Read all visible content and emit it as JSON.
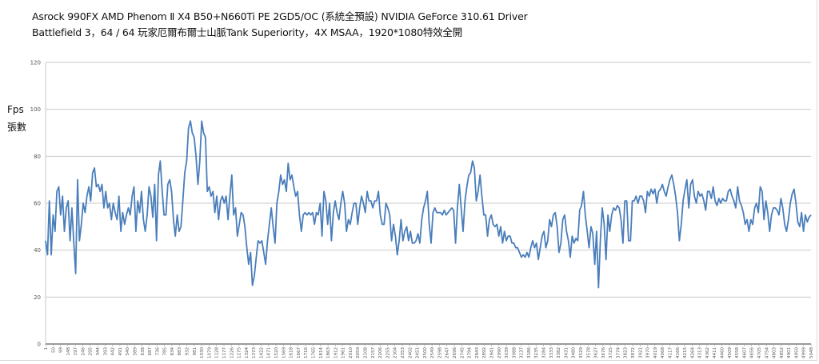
{
  "chart_data": {
    "type": "line",
    "title": "Asrock 990FX AMD Phenom Ⅱ X4 B50+N660Ti PE 2GD5/OC (系統全預設) NVIDIA GeForce 310.61 Driver",
    "subtitle": "Battlefield 3，64 / 64 玩家厄爾布爾士山脈Tank Superiority，4X MSAA，1920*1080特效全開",
    "ylabel": "Fps",
    "ylabel2": "張數",
    "xlabel": "",
    "ylim": [
      0,
      120
    ],
    "yticks": [
      0,
      20,
      40,
      60,
      80,
      100,
      120
    ],
    "x_range": [
      1,
      5048
    ],
    "x_tick_start": 1,
    "x_tick_step": 49,
    "x_tick_end": 5048,
    "grid": true,
    "legend": "none",
    "line_color": "#4a7ebb",
    "series": [
      {
        "name": "Fps",
        "values": [
          44,
          38,
          61,
          38,
          55,
          48,
          65,
          67,
          55,
          63,
          48,
          58,
          61,
          44,
          58,
          43,
          30,
          70,
          44,
          51,
          60,
          56,
          63,
          67,
          61,
          73,
          75,
          67,
          68,
          65,
          68,
          58,
          65,
          58,
          60,
          53,
          60,
          56,
          53,
          63,
          48,
          56,
          51,
          55,
          58,
          55,
          63,
          67,
          48,
          61,
          56,
          65,
          53,
          48,
          55,
          67,
          63,
          54,
          68,
          44,
          72,
          78,
          65,
          55,
          55,
          68,
          70,
          65,
          53,
          46,
          55,
          48,
          50,
          61,
          73,
          78,
          92,
          95,
          90,
          88,
          80,
          68,
          78,
          95,
          90,
          88,
          65,
          67,
          63,
          65,
          56,
          63,
          53,
          61,
          63,
          60,
          63,
          53,
          63,
          72,
          55,
          58,
          46,
          51,
          56,
          55,
          50,
          41,
          34,
          39,
          25,
          29,
          37,
          44,
          43,
          44,
          39,
          34,
          44,
          51,
          58,
          50,
          43,
          60,
          65,
          72,
          68,
          70,
          65,
          77,
          70,
          72,
          67,
          63,
          65,
          55,
          48,
          55,
          56,
          55,
          56,
          55,
          56,
          51,
          56,
          55,
          60,
          46,
          65,
          61,
          51,
          60,
          44,
          56,
          61,
          56,
          53,
          60,
          65,
          60,
          48,
          53,
          51,
          56,
          60,
          60,
          51,
          58,
          63,
          60,
          56,
          65,
          61,
          61,
          58,
          61,
          61,
          65,
          55,
          51,
          51,
          60,
          58,
          55,
          44,
          51,
          46,
          38,
          44,
          53,
          44,
          48,
          50,
          44,
          48,
          43,
          43,
          44,
          47,
          43,
          53,
          58,
          61,
          65,
          51,
          43,
          56,
          58,
          56,
          56,
          56,
          55,
          57,
          55,
          56,
          57,
          58,
          57,
          43,
          58,
          68,
          58,
          48,
          61,
          67,
          72,
          73,
          78,
          75,
          61,
          65,
          72,
          63,
          55,
          55,
          46,
          53,
          55,
          51,
          50,
          51,
          46,
          50,
          43,
          48,
          44,
          46,
          46,
          43,
          43,
          41,
          41,
          39,
          37,
          38,
          37,
          39,
          37,
          41,
          44,
          41,
          43,
          36,
          41,
          46,
          48,
          41,
          44,
          53,
          50,
          55,
          56,
          50,
          39,
          43,
          53,
          55,
          48,
          44,
          37,
          46,
          43,
          45,
          44,
          57,
          59,
          65,
          55,
          48,
          41,
          50,
          47,
          34,
          48,
          24,
          44,
          58,
          51,
          36,
          55,
          48,
          55,
          58,
          57,
          59,
          58,
          53,
          43,
          61,
          61,
          44,
          44,
          61,
          61,
          63,
          60,
          63,
          63,
          61,
          56,
          65,
          63,
          66,
          64,
          66,
          60,
          65,
          66,
          68,
          65,
          63,
          67,
          70,
          72,
          68,
          63,
          56,
          44,
          51,
          61,
          66,
          70,
          58,
          68,
          70,
          63,
          60,
          65,
          63,
          64,
          61,
          57,
          65,
          65,
          62,
          67,
          61,
          59,
          62,
          60,
          62,
          61,
          61,
          65,
          66,
          63,
          61,
          58,
          67,
          61,
          59,
          56,
          51,
          53,
          48,
          53,
          51,
          58,
          60,
          56,
          67,
          65,
          53,
          61,
          56,
          48,
          55,
          58,
          58,
          57,
          55,
          62,
          58,
          51,
          48,
          53,
          60,
          64,
          66,
          60,
          52,
          50,
          56,
          48,
          55,
          52,
          54,
          55
        ]
      }
    ]
  }
}
